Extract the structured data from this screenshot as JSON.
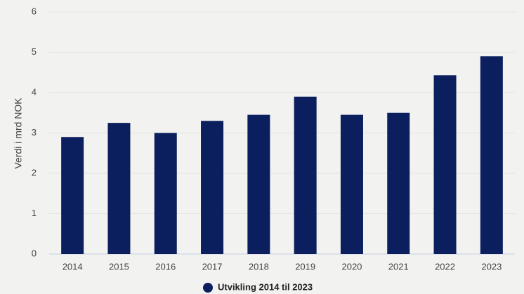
{
  "chart_data": {
    "type": "bar",
    "y_label": "Verdi i mrd NOK",
    "categories": [
      "2014",
      "2015",
      "2016",
      "2017",
      "2018",
      "2019",
      "2020",
      "2021",
      "2022",
      "2023"
    ],
    "series": [
      {
        "name": "Utvikling 2014 til 2023",
        "color": "#0b1f5e",
        "values": [
          2.9,
          3.25,
          3.0,
          3.3,
          3.45,
          3.9,
          3.45,
          3.5,
          4.43,
          4.9
        ]
      }
    ],
    "ylim": [
      0,
      6
    ],
    "yticks": [
      0,
      1,
      2,
      3,
      4,
      5,
      6
    ],
    "grid": true,
    "legend": "bottom"
  }
}
